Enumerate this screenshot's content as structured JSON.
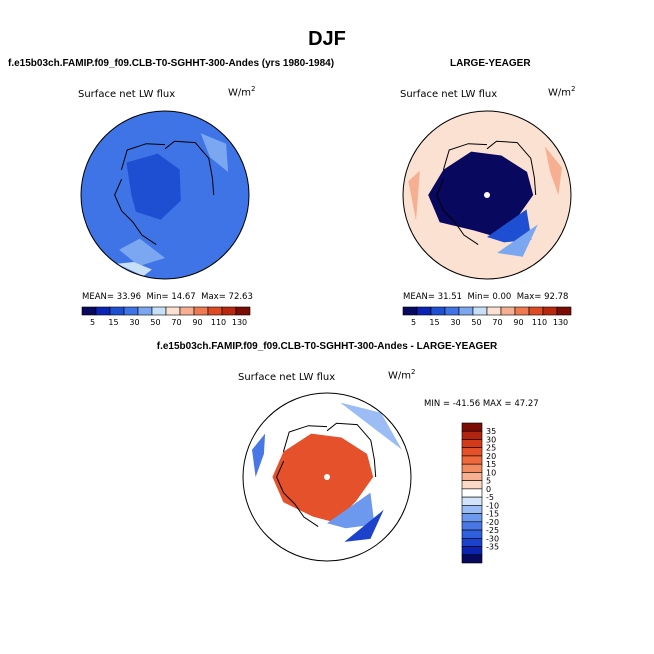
{
  "page": {
    "title": "DJF",
    "top_left_title": "f.e15b03ch.FAMIP.f09_f09.CLB-T0-SGHHT-300-Andes (yrs 1980-1984)",
    "top_right_title": "LARGE-YEAGER",
    "bottom_title": "f.e15b03ch.FAMIP.f09_f09.CLB-T0-SGHHT-300-Andes - LARGE-YEAGER"
  },
  "colors": {
    "abs_scale": [
      "#08085e",
      "#0a23b4",
      "#1e4fd2",
      "#3f74e6",
      "#7ba7f0",
      "#c8dff8",
      "#fbe1d2",
      "#f6b091",
      "#ef7950",
      "#de4a24",
      "#b82810",
      "#7a0c04"
    ],
    "diff_scale": [
      "#08085e",
      "#0c22b0",
      "#1c42cc",
      "#2f5fdc",
      "#4978e6",
      "#6c98ee",
      "#9bbcf4",
      "#d2e4fa",
      "#ffffff",
      "#fbd9c6",
      "#f7b190",
      "#f38b62",
      "#ee6a3c",
      "#e5512a",
      "#d33a1a",
      "#b02410",
      "#7a0c04"
    ],
    "land": "#ffffff",
    "coast": "#000000"
  },
  "chart_data": [
    {
      "type": "heatmap",
      "title": "f.e15b03ch.FAMIP.f09_f09.CLB-T0-SGHHT-300-Andes (yrs 1980-1984)",
      "variable": "Surface net LW flux",
      "units": "W/m",
      "units_power": "2",
      "projection": "polar stereographic (north pole)",
      "stats": {
        "mean_label": "MEAN=",
        "mean": "33.96",
        "min_label": "Min=",
        "min": "14.67",
        "max_label": "Max=",
        "max": "72.63"
      },
      "colorbar": {
        "orientation": "horizontal",
        "levels": [
          5,
          10,
          15,
          20,
          30,
          40,
          50,
          60,
          70,
          80,
          90,
          100,
          110,
          120,
          130
        ],
        "tick_labels": [
          "5",
          "15",
          "30",
          "50",
          "70",
          "90",
          "110",
          "130"
        ]
      }
    },
    {
      "type": "heatmap",
      "title": "LARGE-YEAGER",
      "variable": "Surface net LW flux",
      "units": "W/m",
      "units_power": "2",
      "projection": "polar stereographic (north pole)",
      "stats": {
        "mean_label": "MEAN=",
        "mean": "31.51",
        "min_label": "Min=",
        "min": "0.00",
        "max_label": "Max=",
        "max": "92.78"
      },
      "colorbar": {
        "orientation": "horizontal",
        "levels": [
          5,
          10,
          15,
          20,
          30,
          40,
          50,
          60,
          70,
          80,
          90,
          100,
          110,
          120,
          130
        ],
        "tick_labels": [
          "5",
          "15",
          "30",
          "50",
          "70",
          "90",
          "110",
          "130"
        ]
      }
    },
    {
      "type": "heatmap",
      "title": "f.e15b03ch.FAMIP.f09_f09.CLB-T0-SGHHT-300-Andes - LARGE-YEAGER",
      "variable": "Surface net LW flux",
      "units": "W/m",
      "units_power": "2",
      "projection": "polar stereographic (north pole)",
      "stats": {
        "min_label": "MIN =",
        "min": "-41.56",
        "max_label": "MAX =",
        "max": "47.27"
      },
      "colorbar": {
        "orientation": "vertical",
        "tick_labels": [
          "35",
          "30",
          "25",
          "20",
          "15",
          "10",
          "5",
          "0",
          "-5",
          "-10",
          "-15",
          "-20",
          "-25",
          "-30",
          "-35"
        ]
      }
    }
  ]
}
